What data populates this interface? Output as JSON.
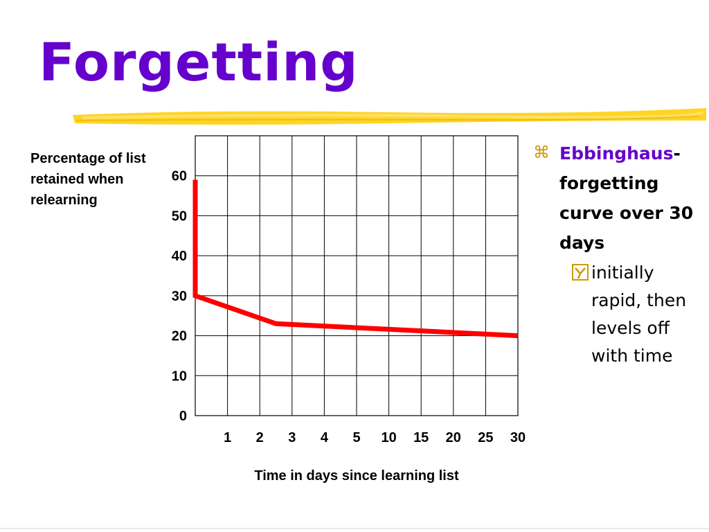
{
  "slide": {
    "title": "Forgetting",
    "accent_color": "#6600cc",
    "bullet_color": "#cc9900",
    "brush_color": "#ffcc00"
  },
  "bullets": {
    "main_highlight": "Ebbinghaus",
    "main_rest": "- forgetting curve over 30 days",
    "main_icon": "command-icon",
    "sub_icon": "checkbox-y-icon",
    "sub_text": "initially rapid, then levels off with time"
  },
  "chart_data": {
    "type": "line",
    "ylabel": "Percentage of list retained when relearning",
    "xlabel": "Time in days since learning list",
    "ylim": [
      0,
      70
    ],
    "yticks": [
      0,
      10,
      20,
      30,
      40,
      50,
      60
    ],
    "xlim": [
      0,
      30
    ],
    "xticks": [
      1,
      2,
      3,
      4,
      5,
      10,
      15,
      20,
      25,
      30
    ],
    "grid": true,
    "series": [
      {
        "color": "#ff0000",
        "x": [
          0,
          0,
          2.5,
          30
        ],
        "y": [
          59,
          30,
          23,
          20
        ]
      }
    ]
  }
}
